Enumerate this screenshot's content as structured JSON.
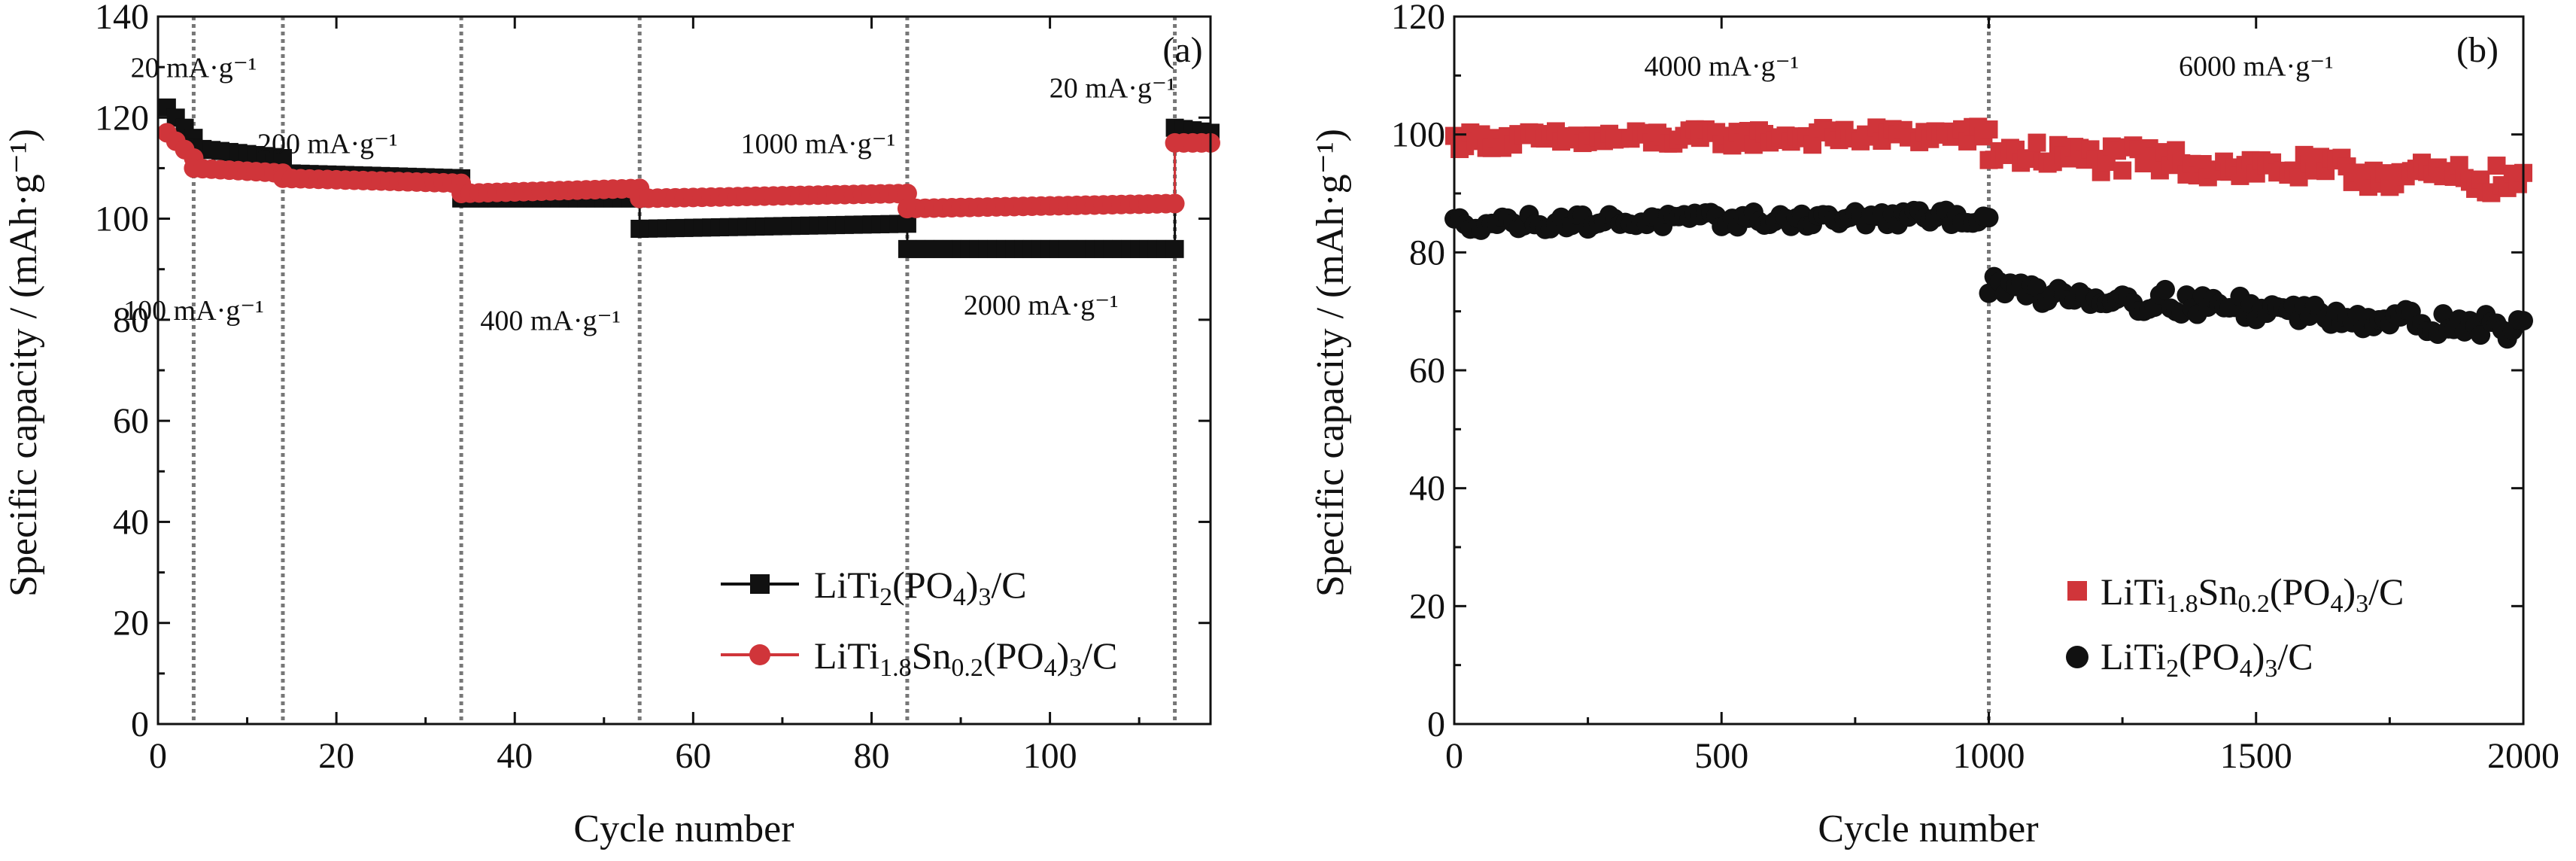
{
  "chart_data": [
    {
      "panel": "(a)",
      "type": "scatter",
      "xlabel": "Cycle number",
      "ylabel": "Specific capacity / (mAh·g⁻¹)",
      "xlim": [
        0,
        118
      ],
      "ylim": [
        0,
        140
      ],
      "xticks": [
        0,
        20,
        40,
        60,
        80,
        100
      ],
      "yticks": [
        0,
        20,
        40,
        60,
        80,
        100,
        120,
        140
      ],
      "grid": false,
      "legend_position": "bottom-right",
      "annotations": [
        {
          "text": "20 mA·g⁻¹",
          "x": 4,
          "y": 128
        },
        {
          "text": "100 mA·g⁻¹",
          "x": 4,
          "y": 80
        },
        {
          "text": "200 mA·g⁻¹",
          "x": 19,
          "y": 113
        },
        {
          "text": "400 mA·g⁻¹",
          "x": 44,
          "y": 78
        },
        {
          "text": "1000 mA·g⁻¹",
          "x": 74,
          "y": 113
        },
        {
          "text": "2000 mA·g⁻¹",
          "x": 99,
          "y": 81
        },
        {
          "text": "20 mA·g⁻¹",
          "x": 107,
          "y": 124
        }
      ],
      "dividers_x": [
        4,
        14,
        34,
        54,
        84,
        114
      ],
      "series": [
        {
          "name": "LiTi₂(PO₄)₃/C",
          "color": "#111111",
          "marker": "square",
          "segments": [
            {
              "x_start": 1,
              "x_end": 4,
              "y_start": 122,
              "y_end": 116
            },
            {
              "x_start": 4,
              "x_end": 14,
              "y_start": 114,
              "y_end": 112
            },
            {
              "x_start": 14,
              "x_end": 34,
              "y_start": 109,
              "y_end": 108
            },
            {
              "x_start": 34,
              "x_end": 54,
              "y_start": 104,
              "y_end": 104
            },
            {
              "x_start": 54,
              "x_end": 84,
              "y_start": 98,
              "y_end": 99
            },
            {
              "x_start": 84,
              "x_end": 114,
              "y_start": 94,
              "y_end": 94
            },
            {
              "x_start": 114,
              "x_end": 118,
              "y_start": 118,
              "y_end": 117
            }
          ]
        },
        {
          "name": "LiTi₁.₈Sn₀.₂(PO₄)₃/C",
          "color": "#d0353a",
          "marker": "circle",
          "segments": [
            {
              "x_start": 1,
              "x_end": 4,
              "y_start": 117,
              "y_end": 112
            },
            {
              "x_start": 4,
              "x_end": 14,
              "y_start": 110,
              "y_end": 109
            },
            {
              "x_start": 14,
              "x_end": 34,
              "y_start": 108,
              "y_end": 107
            },
            {
              "x_start": 34,
              "x_end": 54,
              "y_start": 105,
              "y_end": 106
            },
            {
              "x_start": 54,
              "x_end": 84,
              "y_start": 104,
              "y_end": 105
            },
            {
              "x_start": 84,
              "x_end": 114,
              "y_start": 102,
              "y_end": 103
            },
            {
              "x_start": 114,
              "x_end": 118,
              "y_start": 115,
              "y_end": 115
            }
          ]
        }
      ]
    },
    {
      "panel": "(b)",
      "type": "scatter",
      "xlabel": "Cycle number",
      "ylabel": "Specific capacity / (mAh·g⁻¹)",
      "xlim": [
        0,
        2000
      ],
      "ylim": [
        0,
        120
      ],
      "xticks": [
        0,
        500,
        1000,
        1500,
        2000
      ],
      "yticks": [
        0,
        20,
        40,
        60,
        80,
        100,
        120
      ],
      "grid": false,
      "legend_position": "bottom-right",
      "annotations": [
        {
          "text": "4000 mA·g⁻¹",
          "x": 500,
          "y": 110
        },
        {
          "text": "6000 mA·g⁻¹",
          "x": 1500,
          "y": 110
        }
      ],
      "dividers_x": [
        1000
      ],
      "series": [
        {
          "name": "LiTi₁.₈Sn₀.₂(PO₄)₃/C",
          "color": "#d0353a",
          "marker": "square",
          "segments": [
            {
              "x_start": 0,
              "x_end": 1000,
              "y_start": 99,
              "y_end": 100,
              "jitter": 1.5
            },
            {
              "x_start": 1000,
              "x_end": 2000,
              "y_start": 97,
              "y_end": 92,
              "jitter": 2.5
            }
          ]
        },
        {
          "name": "LiTi₂(PO₄)₃/C",
          "color": "#111111",
          "marker": "circle",
          "segments": [
            {
              "x_start": 0,
              "x_end": 1000,
              "y_start": 85,
              "y_end": 86,
              "jitter": 1.3
            },
            {
              "x_start": 1000,
              "x_end": 2000,
              "y_start": 74,
              "y_end": 67,
              "jitter": 2.0
            }
          ]
        }
      ]
    }
  ],
  "legend_a": [
    {
      "base": "LiTi",
      "sub1": "2",
      "mid": "(PO",
      "sub2": "4",
      "tail": ")",
      "sub3": "3",
      "end": "/C"
    },
    {
      "base": "LiTi",
      "sub1": "1.8",
      "mid": "Sn",
      "sub2": "0.2",
      "tail": "(PO",
      "sub3": "4",
      "end": ")",
      "sub4": "3",
      "fin": "/C"
    }
  ],
  "legend_b": [
    {
      "base": "LiTi",
      "sub1": "1.8",
      "mid": "Sn",
      "sub2": "0.2",
      "tail": "(PO",
      "sub3": "4",
      "end": ")",
      "sub4": "3",
      "fin": "/C"
    },
    {
      "base": "LiTi",
      "sub1": "2",
      "mid": "(PO",
      "sub2": "4",
      "tail": ")",
      "sub3": "3",
      "end": "/C"
    }
  ]
}
